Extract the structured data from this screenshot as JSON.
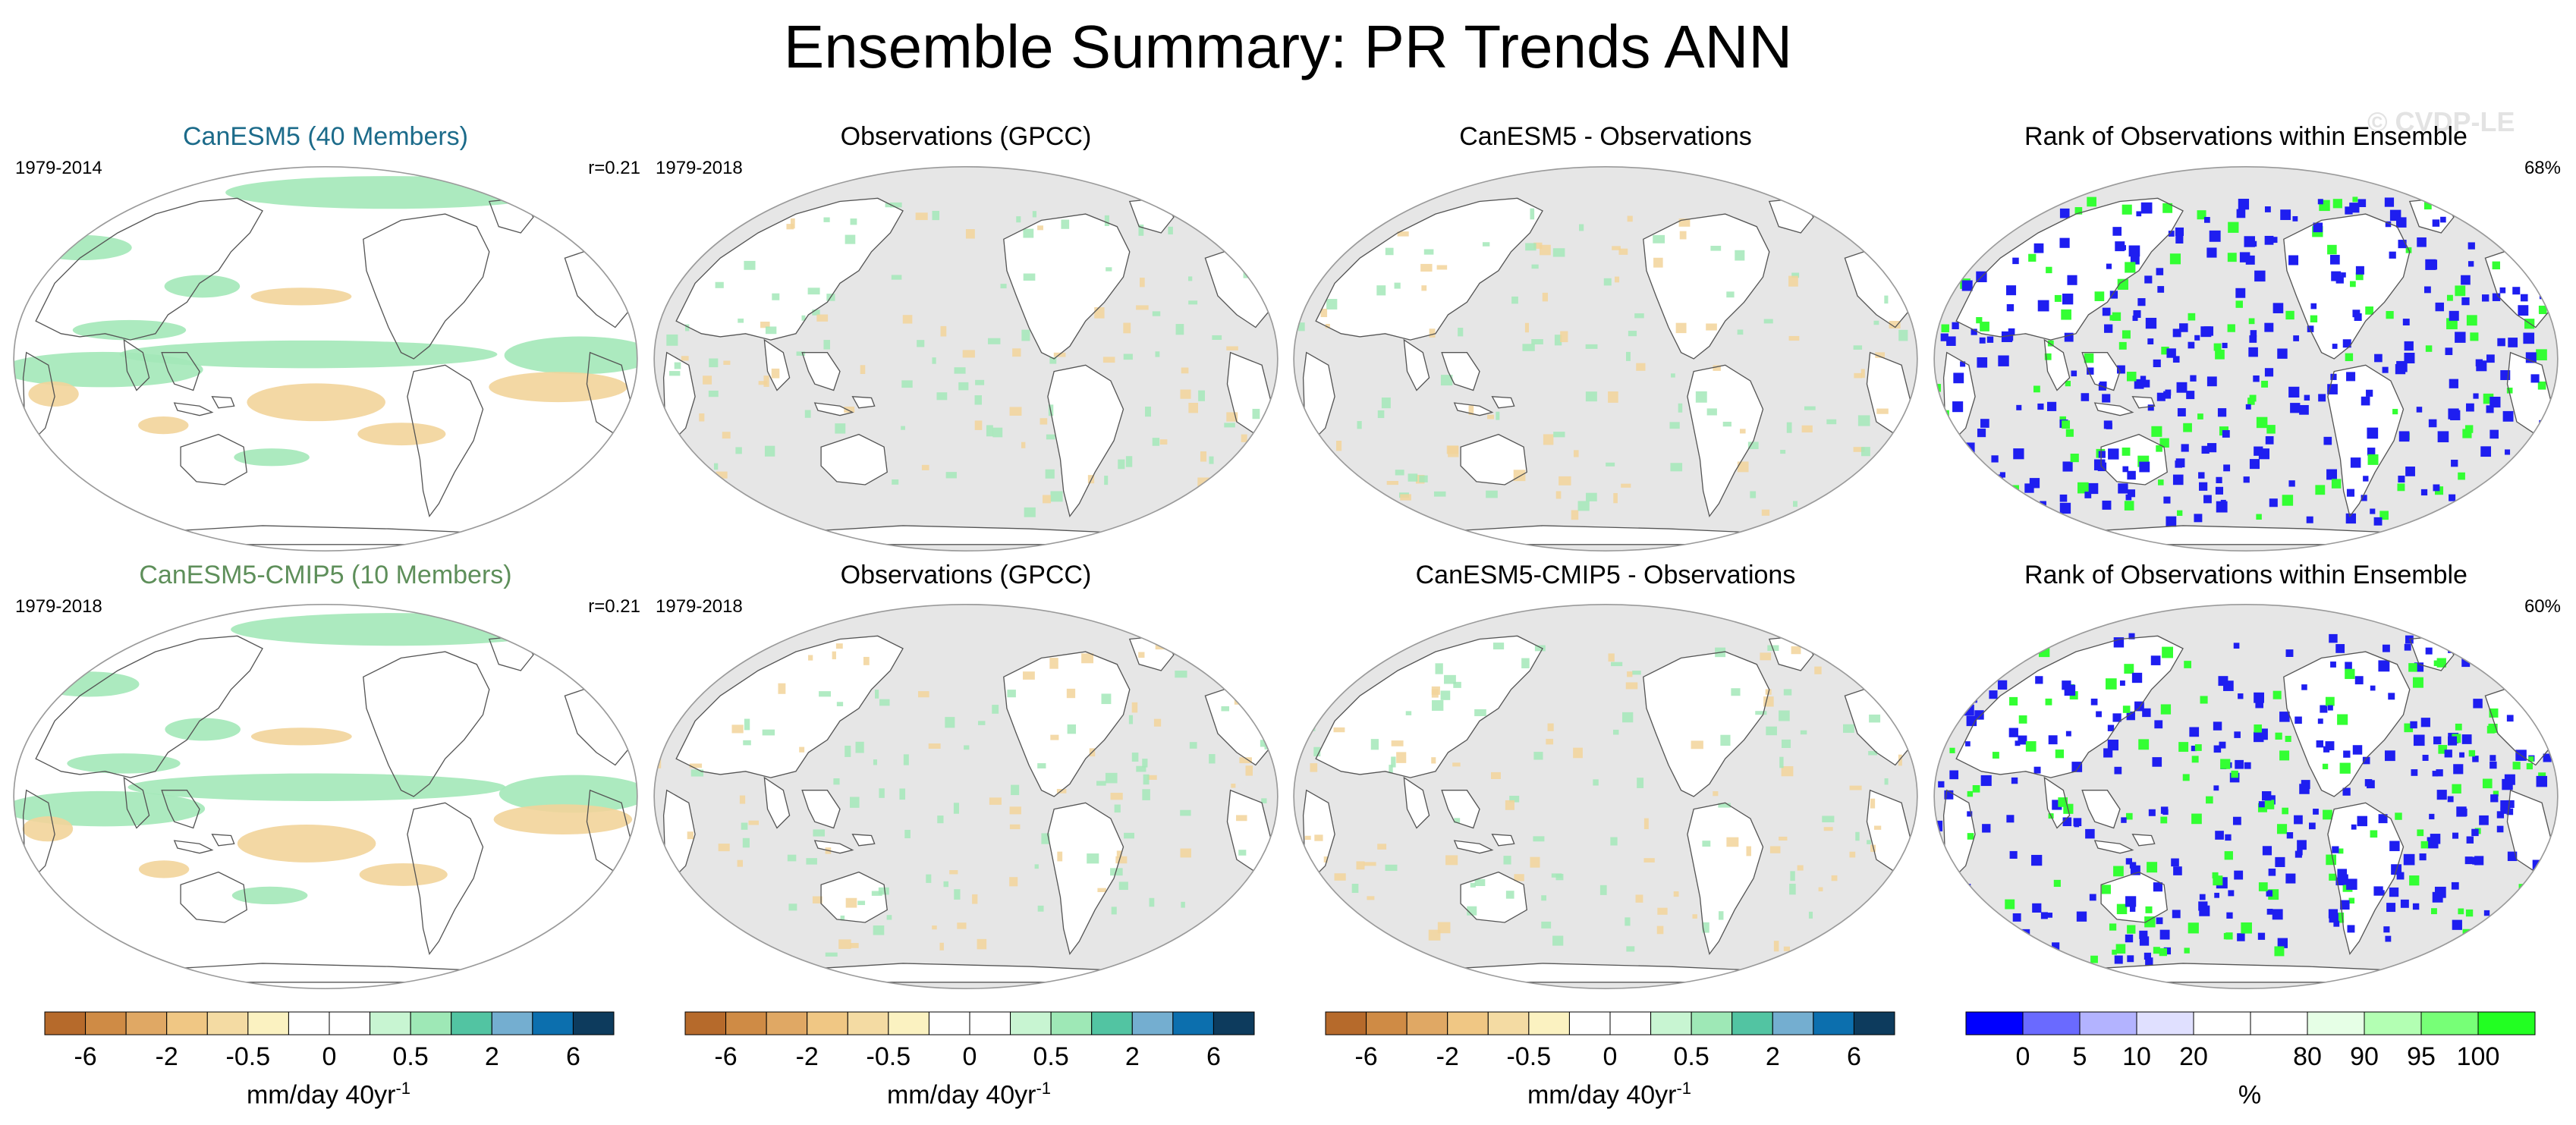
{
  "title": "Ensemble Summary: PR Trends ANN",
  "watermark": "© CVDP-LE",
  "colors": {
    "land_mask": "#e6e6e6",
    "outline": "#555555",
    "dry": "#f2d49a",
    "wet": "#a3e8b8",
    "rank_low": "#1e1ef0",
    "rank_high": "#33ff33"
  },
  "rows": [
    {
      "panels": [
        {
          "title": "CanESM5 (40 Members)",
          "left": "1979-2014",
          "right": "r=0.21",
          "style": "model1",
          "kind": "model"
        },
        {
          "title": "Observations (GPCC)",
          "left": "1979-2018",
          "right": "",
          "style": "plain",
          "kind": "obs"
        },
        {
          "title": "CanESM5 - Observations",
          "left": "",
          "right": "",
          "style": "plain",
          "kind": "diff"
        },
        {
          "title": "Rank of Observations within Ensemble",
          "left": "",
          "right": "68%",
          "style": "plain",
          "kind": "rank"
        }
      ]
    },
    {
      "panels": [
        {
          "title": "CanESM5-CMIP5 (10 Members)",
          "left": "1979-2018",
          "right": "r=0.21",
          "style": "model2",
          "kind": "model"
        },
        {
          "title": "Observations (GPCC)",
          "left": "1979-2018",
          "right": "",
          "style": "plain",
          "kind": "obs"
        },
        {
          "title": "CanESM5-CMIP5 - Observations",
          "left": "",
          "right": "",
          "style": "plain",
          "kind": "diff"
        },
        {
          "title": "Rank of Observations within Ensemble",
          "left": "",
          "right": "60%",
          "style": "plain",
          "kind": "rank"
        }
      ]
    }
  ],
  "colorbars": [
    {
      "colors": [
        "#b66a2b",
        "#cf8b45",
        "#e0a864",
        "#f0c784",
        "#f4dba3",
        "#fbf2c1",
        "#ffffff",
        "#ffffff",
        "#c8f5d2",
        "#9ee8b6",
        "#52c4a2",
        "#74aed0",
        "#0c6fae",
        "#0d3b5d"
      ],
      "ticks": [
        {
          "label": "-6",
          "at": 1
        },
        {
          "label": "-2",
          "at": 3
        },
        {
          "label": "-0.5",
          "at": 5
        },
        {
          "label": "0",
          "at": 7
        },
        {
          "label": "0.5",
          "at": 9
        },
        {
          "label": "2",
          "at": 11
        },
        {
          "label": "6",
          "at": 13
        }
      ],
      "unit": "mm/day 40yr",
      "unit_sup": "-1"
    },
    {
      "colors": [
        "#b66a2b",
        "#cf8b45",
        "#e0a864",
        "#f0c784",
        "#f4dba3",
        "#fbf2c1",
        "#ffffff",
        "#ffffff",
        "#c8f5d2",
        "#9ee8b6",
        "#52c4a2",
        "#74aed0",
        "#0c6fae",
        "#0d3b5d"
      ],
      "ticks": [
        {
          "label": "-6",
          "at": 1
        },
        {
          "label": "-2",
          "at": 3
        },
        {
          "label": "-0.5",
          "at": 5
        },
        {
          "label": "0",
          "at": 7
        },
        {
          "label": "0.5",
          "at": 9
        },
        {
          "label": "2",
          "at": 11
        },
        {
          "label": "6",
          "at": 13
        }
      ],
      "unit": "mm/day 40yr",
      "unit_sup": "-1"
    },
    {
      "colors": [
        "#b66a2b",
        "#cf8b45",
        "#e0a864",
        "#f0c784",
        "#f4dba3",
        "#fbf2c1",
        "#ffffff",
        "#ffffff",
        "#c8f5d2",
        "#9ee8b6",
        "#52c4a2",
        "#74aed0",
        "#0c6fae",
        "#0d3b5d"
      ],
      "ticks": [
        {
          "label": "-6",
          "at": 1
        },
        {
          "label": "-2",
          "at": 3
        },
        {
          "label": "-0.5",
          "at": 5
        },
        {
          "label": "0",
          "at": 7
        },
        {
          "label": "0.5",
          "at": 9
        },
        {
          "label": "2",
          "at": 11
        },
        {
          "label": "6",
          "at": 13
        }
      ],
      "unit": "mm/day 40yr",
      "unit_sup": "-1"
    },
    {
      "colors": [
        "#0000ff",
        "#6a6aff",
        "#b3b3ff",
        "#e0e0ff",
        "#ffffff",
        "#ffffff",
        "#e6ffe6",
        "#b3ffb3",
        "#77ff77",
        "#22ff22"
      ],
      "ticks": [
        {
          "label": "0",
          "at": 1
        },
        {
          "label": "5",
          "at": 2
        },
        {
          "label": "10",
          "at": 3
        },
        {
          "label": "20",
          "at": 4
        },
        {
          "label": "80",
          "at": 6
        },
        {
          "label": "90",
          "at": 7
        },
        {
          "label": "95",
          "at": 8
        },
        {
          "label": "100",
          "at": 9
        }
      ],
      "unit": "%",
      "unit_sup": ""
    }
  ]
}
